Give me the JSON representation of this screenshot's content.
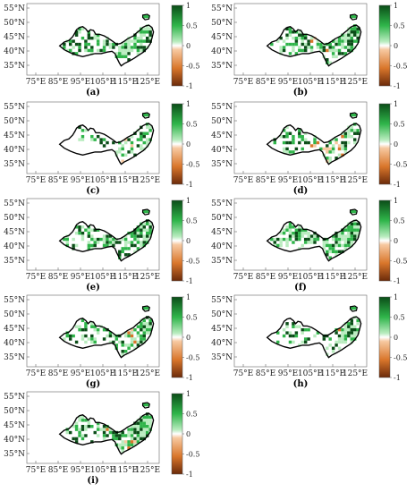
{
  "figure": {
    "panel_labels": [
      "(a)",
      "(b)",
      "(c)",
      "(d)",
      "(e)",
      "(f)",
      "(g)",
      "(h)",
      "(i)"
    ],
    "lat_ticks": [
      "55°N",
      "50°N",
      "45°N",
      "40°N",
      "35°N"
    ],
    "lon_ticks": [
      "75°E",
      "85°E",
      "95°E",
      "105°E",
      "115°E",
      "125°E"
    ],
    "colorbar_ticks": [
      "1",
      "0.5",
      "0",
      "-0.5",
      "-1"
    ],
    "colors": {
      "dark_green": "#0b4d18",
      "mid_green": "#2fb54a",
      "light_green": "#b9ecbf",
      "white": "#ffffff",
      "light_orange": "#f7c9a1",
      "mid_orange": "#d9762b",
      "dark_brown": "#6b2a0a",
      "outline": "#000000"
    }
  },
  "chart_data": [
    {
      "type": "heatmap",
      "panel": "(a)",
      "lat_range_N": [
        33,
        55
      ],
      "lon_range_E": [
        70,
        130
      ],
      "value_range": [
        -1,
        1
      ]
    },
    {
      "type": "heatmap",
      "panel": "(b)",
      "lat_range_N": [
        33,
        55
      ],
      "lon_range_E": [
        70,
        130
      ],
      "value_range": [
        -1,
        1
      ]
    },
    {
      "type": "heatmap",
      "panel": "(c)",
      "lat_range_N": [
        33,
        55
      ],
      "lon_range_E": [
        70,
        130
      ],
      "value_range": [
        -1,
        1
      ]
    },
    {
      "type": "heatmap",
      "panel": "(d)",
      "lat_range_N": [
        33,
        55
      ],
      "lon_range_E": [
        70,
        130
      ],
      "value_range": [
        -1,
        1
      ]
    },
    {
      "type": "heatmap",
      "panel": "(e)",
      "lat_range_N": [
        33,
        55
      ],
      "lon_range_E": [
        70,
        130
      ],
      "value_range": [
        -1,
        1
      ]
    },
    {
      "type": "heatmap",
      "panel": "(f)",
      "lat_range_N": [
        33,
        55
      ],
      "lon_range_E": [
        70,
        130
      ],
      "value_range": [
        -1,
        1
      ]
    },
    {
      "type": "heatmap",
      "panel": "(g)",
      "lat_range_N": [
        33,
        55
      ],
      "lon_range_E": [
        70,
        130
      ],
      "value_range": [
        -1,
        1
      ]
    },
    {
      "type": "heatmap",
      "panel": "(h)",
      "lat_range_N": [
        33,
        55
      ],
      "lon_range_E": [
        70,
        130
      ],
      "value_range": [
        -1,
        1
      ]
    },
    {
      "type": "heatmap",
      "panel": "(i)",
      "lat_range_N": [
        33,
        55
      ],
      "lon_range_E": [
        70,
        130
      ],
      "value_range": [
        -1,
        1
      ]
    }
  ]
}
